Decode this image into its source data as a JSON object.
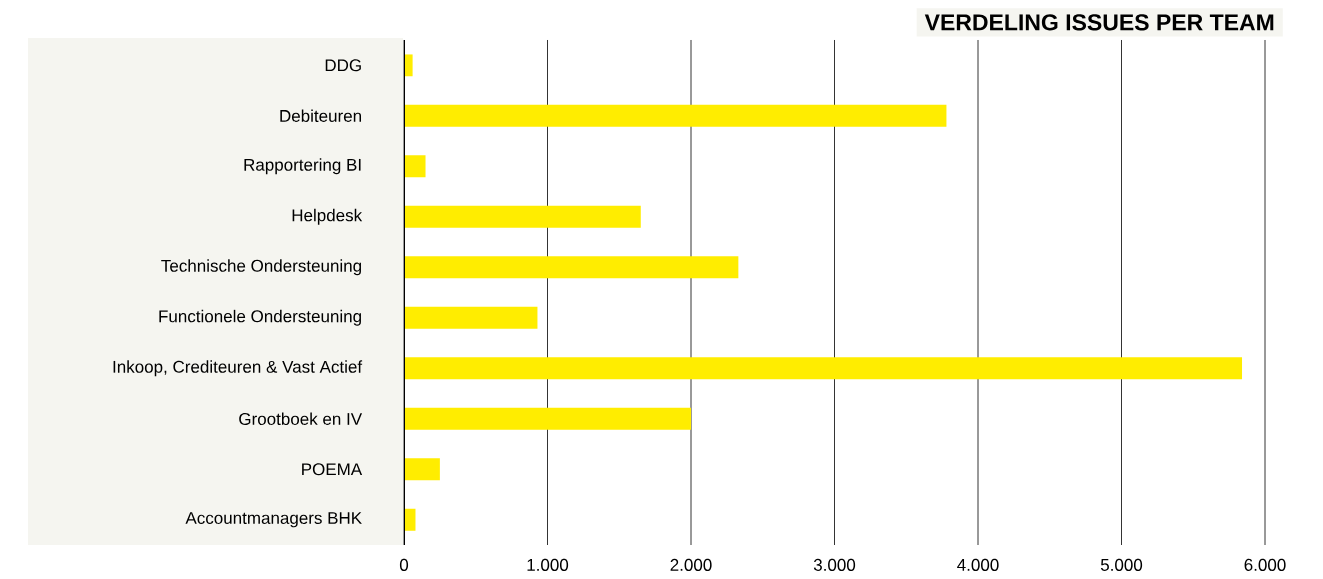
{
  "chart_data": {
    "type": "bar",
    "orientation": "horizontal",
    "title": "VERDELING ISSUES PER TEAM",
    "categories": [
      "DDG",
      "Debiteuren",
      "Rapportering BI",
      "Helpdesk",
      "Technische Ondersteuning",
      "Functionele Ondersteuning",
      "Inkoop, Crediteuren & Vast Actief",
      "Grootboek en IV",
      "POEMA",
      "Accountmanagers BHK"
    ],
    "values": [
      60,
      3780,
      150,
      1650,
      2330,
      930,
      5840,
      2000,
      250,
      80
    ],
    "color": "#ffed00",
    "xlim": [
      0,
      6000
    ],
    "xticks": [
      {
        "value": 0,
        "label": "0"
      },
      {
        "value": 1000,
        "label": "1.000"
      },
      {
        "value": 2000,
        "label": "2.000"
      },
      {
        "value": 3000,
        "label": "3.000"
      },
      {
        "value": 4000,
        "label": "4.000"
      },
      {
        "value": 5000,
        "label": "5.000"
      },
      {
        "value": 6000,
        "label": "6.000"
      }
    ],
    "grid": "x"
  }
}
